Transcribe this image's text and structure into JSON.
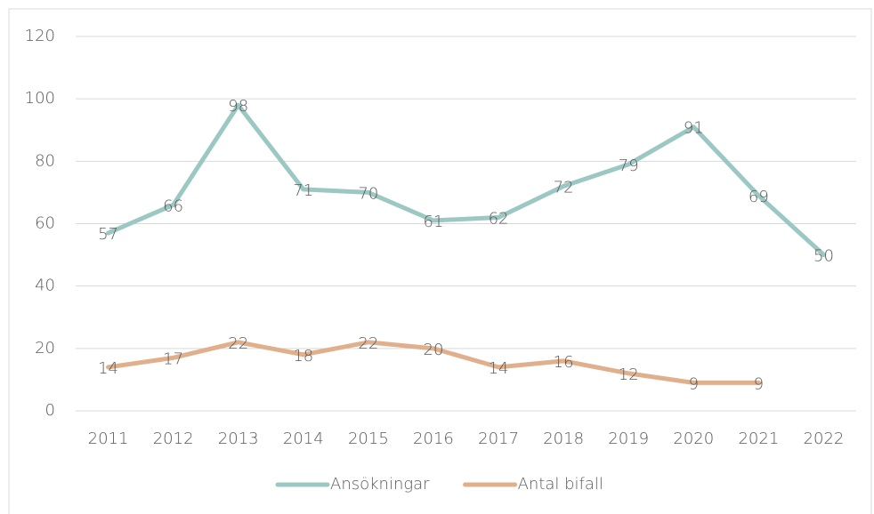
{
  "chart_data": {
    "type": "line",
    "categories": [
      "2011",
      "2012",
      "2013",
      "2014",
      "2015",
      "2016",
      "2017",
      "2018",
      "2019",
      "2020",
      "2021",
      "2022"
    ],
    "series": [
      {
        "name": "Ansökningar",
        "color": "#9cc8c4",
        "values": [
          57,
          66,
          98,
          71,
          70,
          61,
          62,
          72,
          79,
          91,
          69,
          50
        ]
      },
      {
        "name": "Antal bifall",
        "color": "#e0b08c",
        "values": [
          14,
          17,
          22,
          18,
          22,
          20,
          14,
          16,
          12,
          9,
          9,
          null
        ]
      }
    ],
    "ylim": [
      0,
      120
    ],
    "yticks": [
      0,
      20,
      40,
      60,
      80,
      100,
      120
    ],
    "grid": true,
    "legend": "bottom"
  }
}
